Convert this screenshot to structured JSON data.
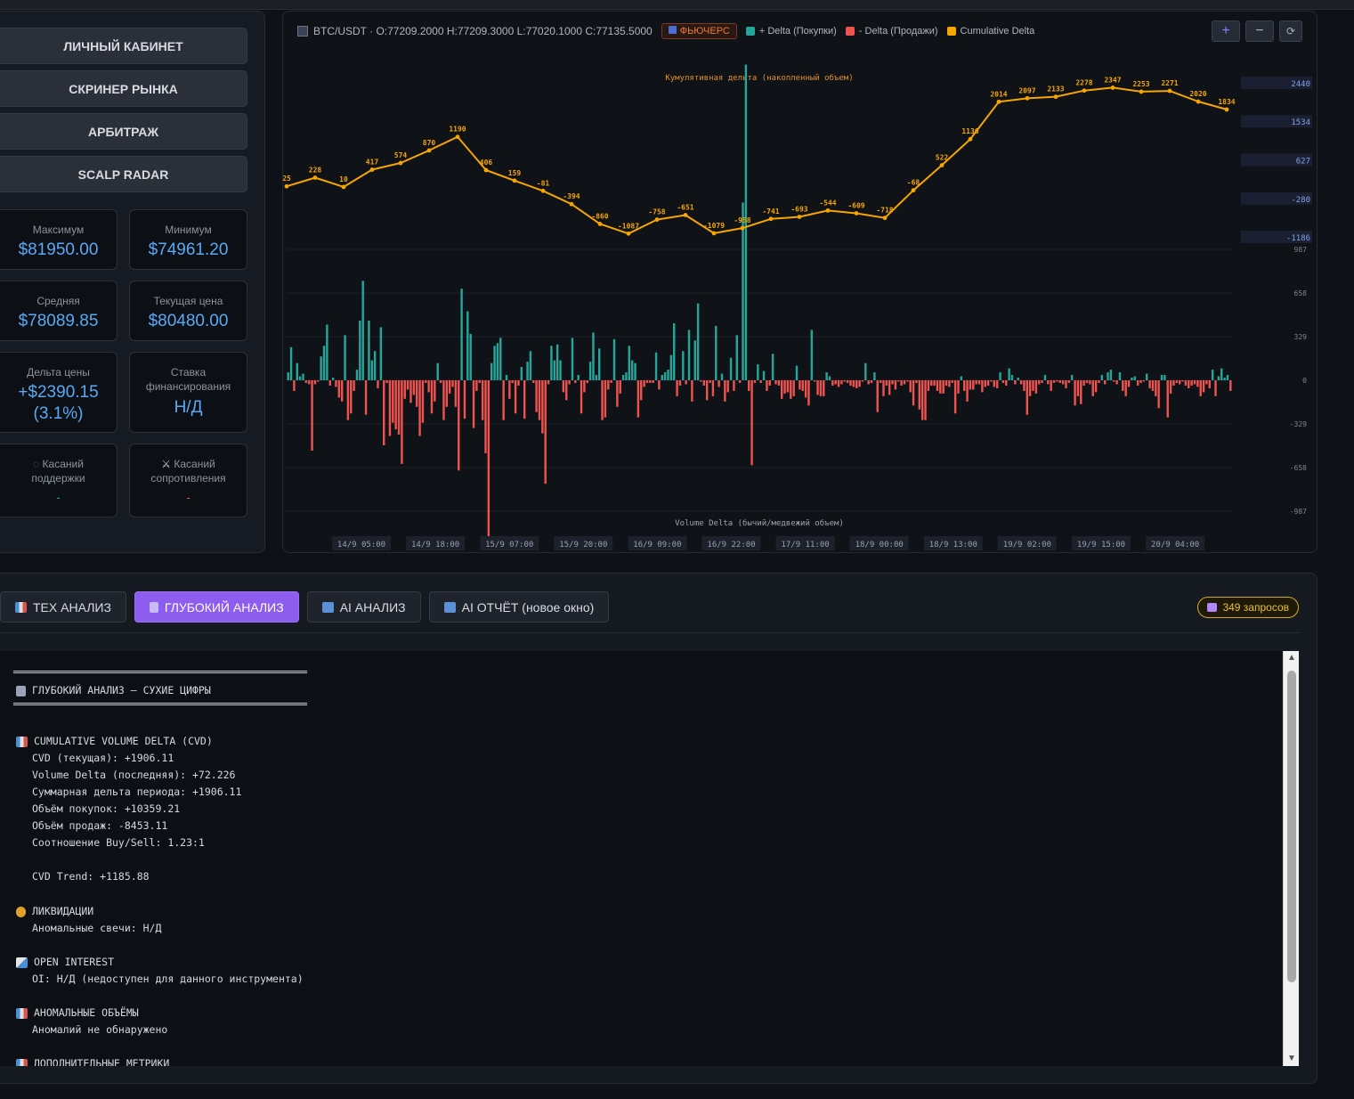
{
  "nav": {
    "items": [
      "ЛИЧНЫЙ КАБИНЕТ",
      "СКРИНЕР РЫНКА",
      "АРБИТРАЖ",
      "SCALP RADAR"
    ]
  },
  "stats": {
    "max_label": "Максимум",
    "max_value": "$81950.00",
    "min_label": "Минимум",
    "min_value": "$74961.20",
    "avg_label": "Средняя",
    "avg_value": "$78089.85",
    "cur_label": "Текущая цена",
    "cur_value": "$80480.00",
    "delta_label": "Дельта цены",
    "delta_value": "+$2390.15",
    "delta_pct": "(3.1%)",
    "funding_label": "Ставка финансирования",
    "funding_value": "Н/Д",
    "support_label": "Касаний поддержки",
    "support_value": "-",
    "resist_label": "Касаний сопротивления",
    "resist_value": "-"
  },
  "chart_header": {
    "symbol_line": "BTC/USDT · O:77209.2000 H:77209.3000 L:77020.1000 C:77135.5000",
    "futures_label": "ФЬЮЧЕРС",
    "legend": [
      {
        "label": "+ Delta (Покупки)",
        "color": "#26a69a"
      },
      {
        "label": "- Delta (Продажи)",
        "color": "#ef5350"
      },
      {
        "label": "Cumulative Delta",
        "color": "#f7a600"
      }
    ],
    "controls": [
      "+",
      "−",
      "⟳"
    ]
  },
  "chart_data": {
    "type": "line",
    "title": "Кумулятивная дельта (накопленный объем)",
    "subtitle": "Volume Delta (бычий/медвежий объем)",
    "x_ticks": [
      "14/9 05:00",
      "14/9 18:00",
      "15/9 07:00",
      "15/9 20:00",
      "16/9 09:00",
      "16/9 22:00",
      "17/9 11:00",
      "18/9 00:00",
      "18/9 13:00",
      "19/9 02:00",
      "19/9 15:00",
      "20/9 04:00"
    ],
    "cvd_axis_ticks": [
      2440,
      1534,
      627,
      -280,
      -1186
    ],
    "cvd_ylim": [
      -1186,
      2440
    ],
    "delta_axis_ticks": [
      987,
      658,
      329,
      0,
      -329,
      -658,
      -987
    ],
    "delta_ylim": [
      -987,
      987
    ],
    "cvd_series": {
      "name": "Cumulative Delta",
      "color": "#f7a600",
      "values": [
        25,
        228,
        10,
        417,
        574,
        870,
        1190,
        406,
        159,
        -81,
        -394,
        -860,
        -1087,
        -758,
        -651,
        -1079,
        -958,
        -741,
        -693,
        -544,
        -609,
        -718,
        -68,
        522,
        1136,
        2014,
        2097,
        2133,
        2278,
        2347,
        2253,
        2271,
        2020,
        1834
      ]
    },
    "delta_series": [
      {
        "name": "+ Delta (Покупки)",
        "color": "#26a69a"
      },
      {
        "name": "- Delta (Продажи)",
        "color": "#ef5350"
      }
    ],
    "delta_values": [
      60,
      250,
      -80,
      130,
      30,
      50,
      -20,
      -30,
      -530,
      -30,
      -10,
      180,
      260,
      420,
      -40,
      20,
      -50,
      -130,
      -160,
      340,
      -300,
      -250,
      -80,
      80,
      450,
      750,
      -260,
      450,
      150,
      220,
      -60,
      400,
      -490,
      -20,
      -420,
      -320,
      -370,
      -410,
      -630,
      -140,
      -70,
      -170,
      -110,
      -200,
      -420,
      -320,
      -20,
      -90,
      -250,
      -160,
      130,
      -20,
      -300,
      -200,
      -100,
      -50,
      -200,
      -680,
      690,
      -290,
      520,
      350,
      -360,
      -80,
      -20,
      -300,
      -550,
      -1200,
      130,
      260,
      280,
      320,
      -300,
      40,
      -140,
      -20,
      -250,
      -40,
      100,
      -290,
      140,
      220,
      -20,
      -240,
      -300,
      -400,
      -780,
      -30,
      260,
      150,
      270,
      150,
      -90,
      -150,
      -30,
      320,
      -20,
      40,
      -250,
      -90,
      -20,
      140,
      360,
      40,
      240,
      -300,
      -280,
      -70,
      -20,
      310,
      -200,
      -100,
      40,
      60,
      260,
      150,
      130,
      -280,
      -150,
      -50,
      -20,
      -20,
      -20,
      210,
      -70,
      40,
      60,
      80,
      190,
      430,
      -120,
      -40,
      220,
      -30,
      380,
      -160,
      300,
      580,
      -10,
      -40,
      -150,
      -20,
      -120,
      410,
      -50,
      50,
      -160,
      -90,
      170,
      -80,
      340,
      -20,
      1340,
      2380,
      -80,
      -640,
      -20,
      120,
      -20,
      70,
      -80,
      -40,
      200,
      -30,
      -40,
      -140,
      -100,
      -90,
      -140,
      -120,
      110,
      -70,
      -80,
      -130,
      -190,
      380,
      -10,
      -110,
      -120,
      -120,
      60,
      30,
      -40,
      -30,
      -50,
      -30,
      -10,
      -20,
      -40,
      -50,
      -60,
      -50,
      -10,
      130,
      -30,
      -20,
      60,
      -240,
      -20,
      -120,
      -40,
      -110,
      -30,
      -70,
      -10,
      -40,
      -30,
      -10,
      -90,
      -190,
      -20,
      -220,
      -300,
      -300,
      -80,
      -40,
      -40,
      -80,
      -100,
      -100,
      -40,
      -50,
      -20,
      -250,
      -100,
      30,
      -80,
      -160,
      -70,
      -70,
      -30,
      -30,
      -90,
      -50,
      -40,
      -10,
      -50,
      -60,
      60,
      -20,
      -40,
      90,
      40,
      -30,
      20,
      -30,
      -80,
      -260,
      -120,
      -80,
      -100,
      -30,
      -20,
      40,
      -30,
      -80,
      -20,
      -10,
      -20,
      -30,
      -60,
      -20,
      40,
      -190,
      -120,
      -180,
      -40,
      -20,
      -30,
      -120,
      -90,
      -20,
      40,
      -30,
      60,
      80,
      -10,
      -30,
      60,
      -80,
      -120,
      -50,
      20,
      30,
      -40,
      -20,
      -10,
      50,
      -60,
      -80,
      -120,
      -210,
      40,
      40,
      -280,
      -100,
      -40,
      -20,
      -30,
      -10,
      -40,
      -60,
      -40,
      -30,
      -50,
      -120,
      -90,
      -30,
      -60,
      80,
      -120,
      30,
      90,
      20,
      40,
      -80
    ]
  },
  "tabs": [
    {
      "label": "ТЕХ АНАЛИЗ",
      "icon": "bar-chart-icon",
      "active": false
    },
    {
      "label": "ГЛУБОКИЙ АНАЛИЗ",
      "icon": "microscope-icon",
      "active": true
    },
    {
      "label": "AI АНАЛИЗ",
      "icon": "monitor-icon",
      "active": false
    },
    {
      "label": "AI ОТЧЁТ (новое окно)",
      "icon": "monitor-icon",
      "active": false
    }
  ],
  "requests_badge": "349 запросов",
  "report": {
    "title": "ГЛУБОКИЙ АНАЛИЗ — СУХИЕ ЦИФРЫ",
    "cvd_header": "CUMULATIVE VOLUME DELTA (CVD)",
    "cvd_lines": [
      "CVD (текущая): +1906.11",
      "Volume Delta (последняя): +72.226",
      "Суммарная дельта периода: +1906.11",
      "Объём покупок: +10359.21",
      "Объём продаж: -8453.11",
      "Соотношение Buy/Sell: 1.23:1",
      "CVD Trend: +1185.88"
    ],
    "liq_header": "ЛИКВИДАЦИИ",
    "liq_line": "Аномальные свечи: Н/Д",
    "oi_header": "OPEN INTEREST",
    "oi_line": "OI: Н/Д (недоступен для данного инструмента)",
    "anom_header": "АНОМАЛЬНЫЕ ОБЪЁМЫ",
    "anom_line": "Аномалий не обнаружено",
    "extra_header": "ДОПОЛНИТЕЛЬНЫЕ МЕТРИКИ"
  }
}
